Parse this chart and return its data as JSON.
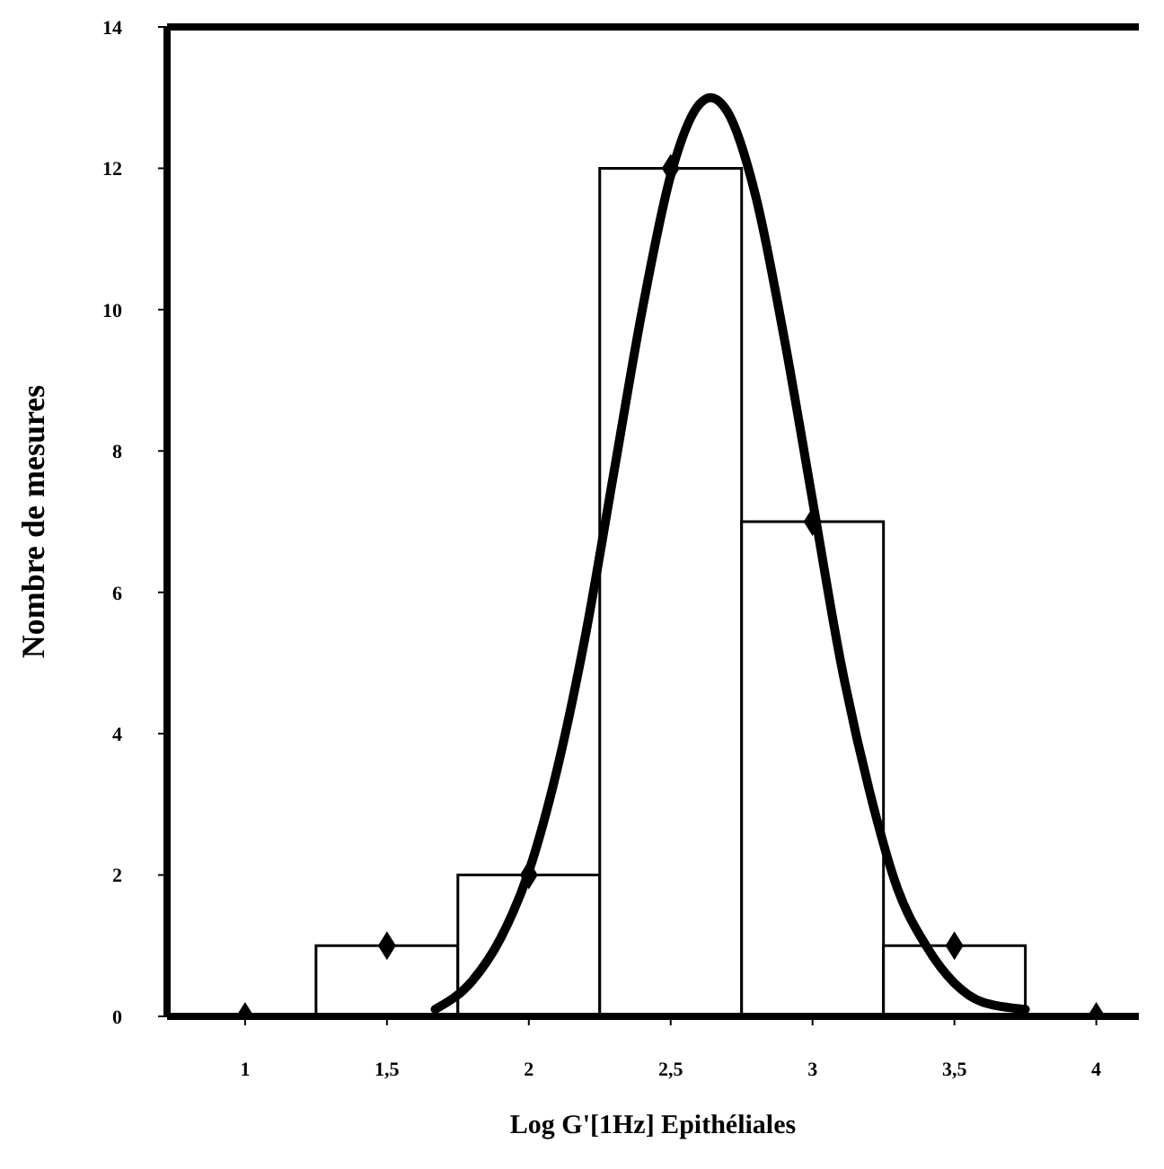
{
  "chart_data": {
    "type": "histogram",
    "xlabel": "Log G'[1Hz] Epithéliales",
    "ylabel": "Nombre de mesures",
    "bins": [
      1.25,
      1.75,
      2.25,
      2.75,
      3.25,
      3.75
    ],
    "values": [
      1,
      2,
      12,
      7,
      1
    ],
    "color": "#ffffff",
    "series": [
      {
        "type": "line",
        "color": "#000000",
        "line_style": "solid",
        "marker": "none",
        "x": [
          1.67,
          1.8,
          1.9,
          2.0,
          2.1,
          2.2,
          2.3,
          2.4,
          2.5,
          2.6,
          2.64,
          2.7,
          2.8,
          2.9,
          3.0,
          3.1,
          3.2,
          3.3,
          3.4,
          3.5,
          3.6,
          3.75
        ],
        "values": [
          0.1,
          0.5,
          1.1,
          2.05,
          3.5,
          5.4,
          7.7,
          10.0,
          11.9,
          12.9,
          13.0,
          12.8,
          11.6,
          9.6,
          7.3,
          5.0,
          3.2,
          1.8,
          1.0,
          0.47,
          0.2,
          0.1
        ]
      },
      {
        "type": "scatter",
        "color": "#000000",
        "marker": "diamond",
        "x": [
          1,
          1.5,
          2,
          2.5,
          3,
          3.5,
          4
        ],
        "values": [
          0,
          1,
          2,
          12,
          7,
          1,
          0
        ]
      }
    ],
    "xlim": [
      0.725,
      4.15
    ],
    "ylim": [
      0,
      14
    ],
    "xticks": [
      1,
      {
        "value": 1.5,
        "label": "1,5"
      },
      2,
      {
        "value": 2.5,
        "label": "2,5"
      },
      3,
      {
        "value": 3.5,
        "label": "3,5"
      },
      4
    ],
    "yticks": [
      0,
      2,
      4,
      6,
      8,
      10,
      12,
      14
    ]
  }
}
